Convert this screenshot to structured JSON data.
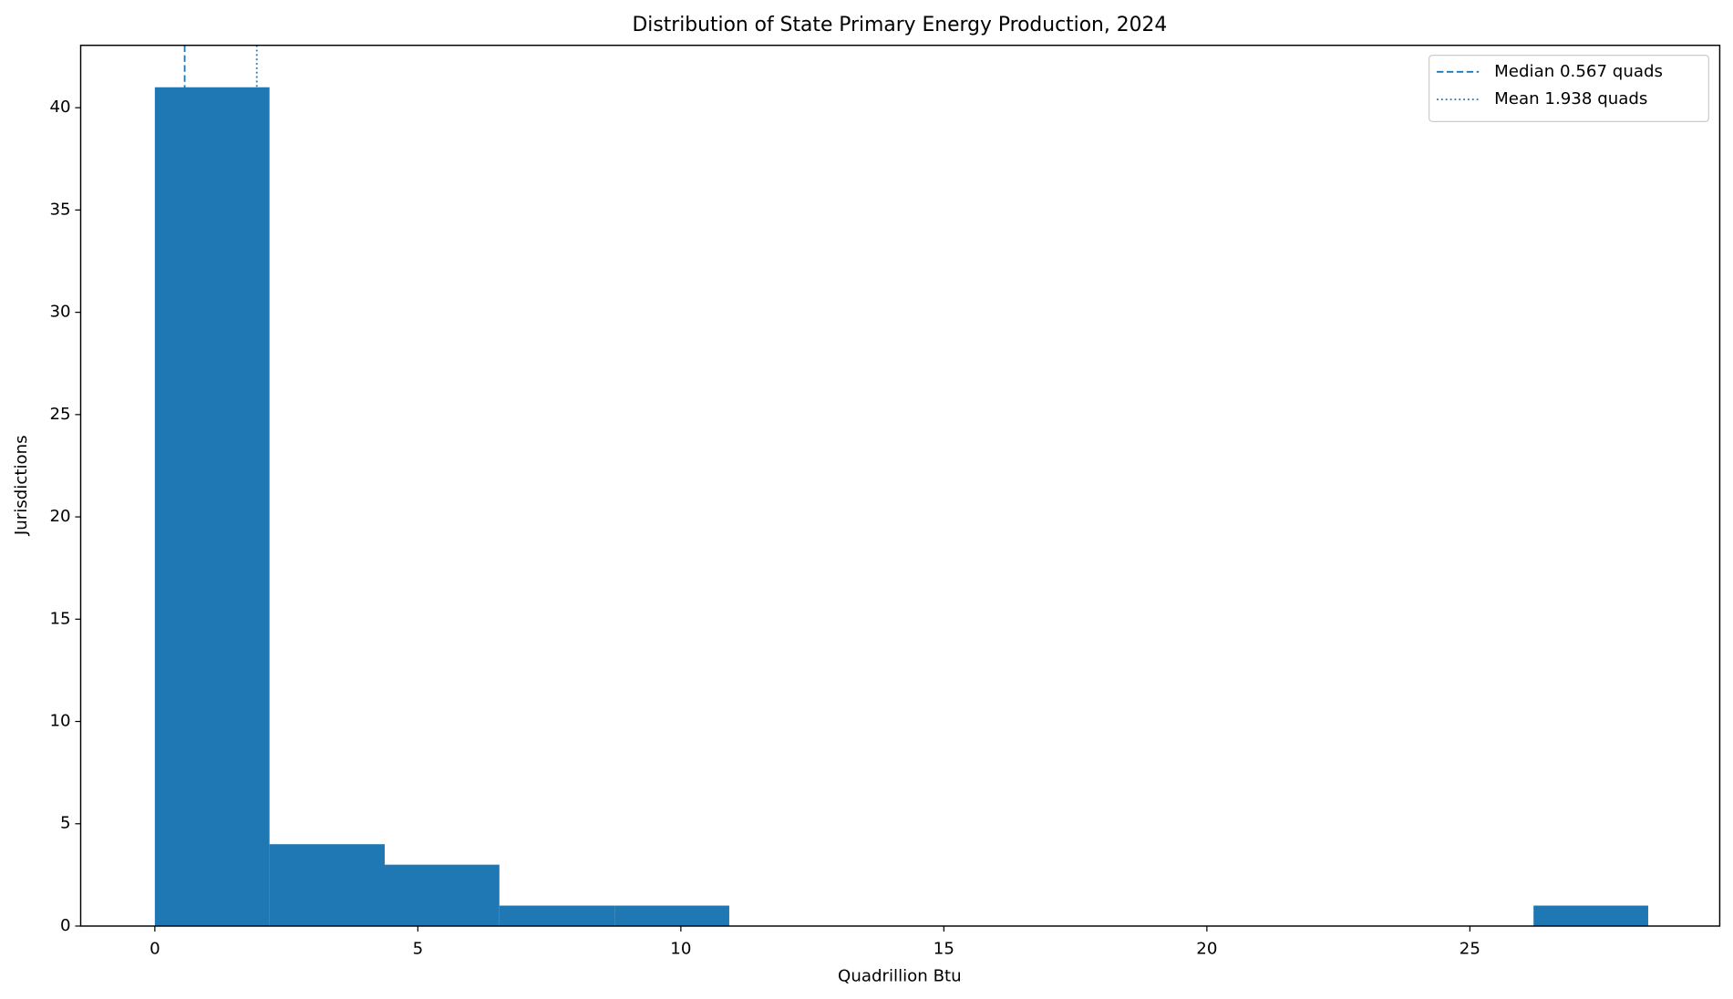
{
  "chart_data": {
    "type": "histogram",
    "title": "Distribution of State Primary Energy Production, 2024",
    "x_label": "Quadrillion Btu",
    "y_label": "Jurisdictions",
    "bins": [
      0,
      2.18,
      4.37,
      6.55,
      8.74,
      10.92,
      13.1,
      15.29,
      17.47,
      19.66,
      21.84,
      24.02,
      26.21,
      28.39
    ],
    "counts": [
      41,
      4,
      3,
      1,
      1,
      0,
      0,
      0,
      0,
      0,
      0,
      0,
      1
    ],
    "color": "#1f77b4",
    "reference_lines": [
      {
        "value": 0.567,
        "label": "Median 0.567 quads",
        "style": "dashed",
        "color": "#1f77b4"
      },
      {
        "value": 1.938,
        "label": "Mean 1.938 quads",
        "style": "dotted",
        "color": "#1f77b4"
      }
    ],
    "xlim": [
      -1.41,
      29.75
    ],
    "ylim": [
      0,
      43.05
    ],
    "xticks": [
      0,
      5,
      10,
      15,
      20,
      25
    ],
    "yticks": [
      0,
      5,
      10,
      15,
      20,
      25,
      30,
      35,
      40
    ],
    "legend": "upper right"
  }
}
